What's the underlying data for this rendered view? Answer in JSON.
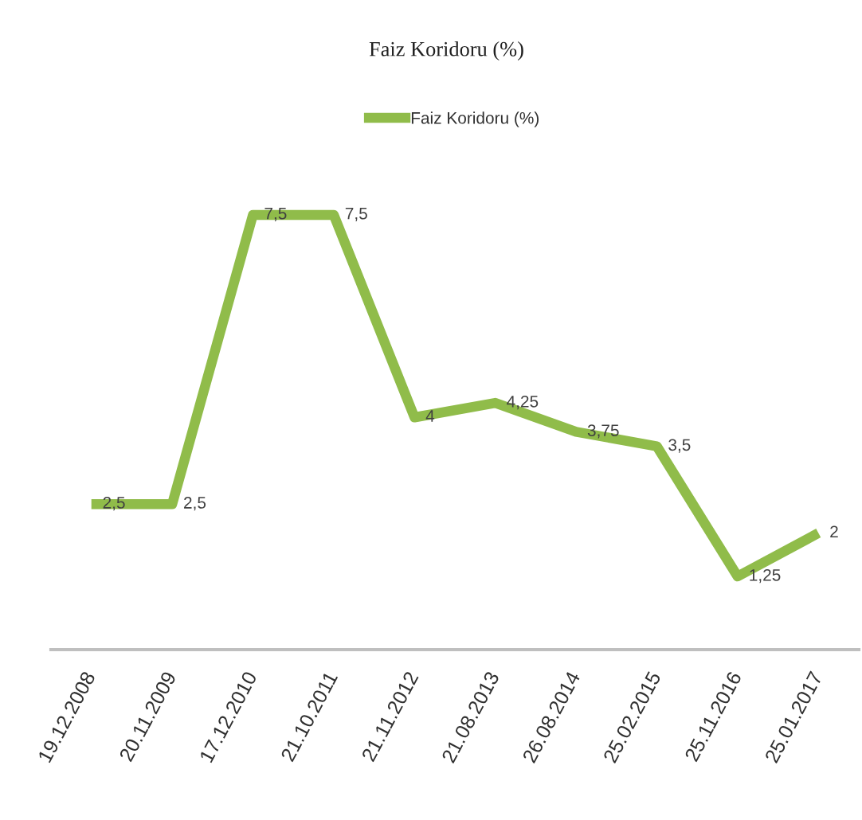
{
  "chart_data": {
    "type": "line",
    "title": "Faiz Koridoru (%)",
    "categories": [
      "19.12.2008",
      "20.11.2009",
      "17.12.2010",
      "21.10.2011",
      "21.11.2012",
      "21.08.2013",
      "26.08.2014",
      "25.02.2015",
      "25.11.2016",
      "25.01.2017"
    ],
    "series": [
      {
        "name": "Faiz Koridoru (%)",
        "color": "#90bc4a",
        "values": [
          2.5,
          2.5,
          7.5,
          7.5,
          4,
          4.25,
          3.75,
          3.5,
          1.25,
          2
        ],
        "value_labels": [
          "2,5",
          "2,5",
          "7,5",
          "7,5",
          "4",
          "4,25",
          "3,75",
          "3,5",
          "1,25",
          "2"
        ]
      }
    ],
    "tick_labels": "x",
    "legend": "top",
    "line_style": "solid"
  }
}
